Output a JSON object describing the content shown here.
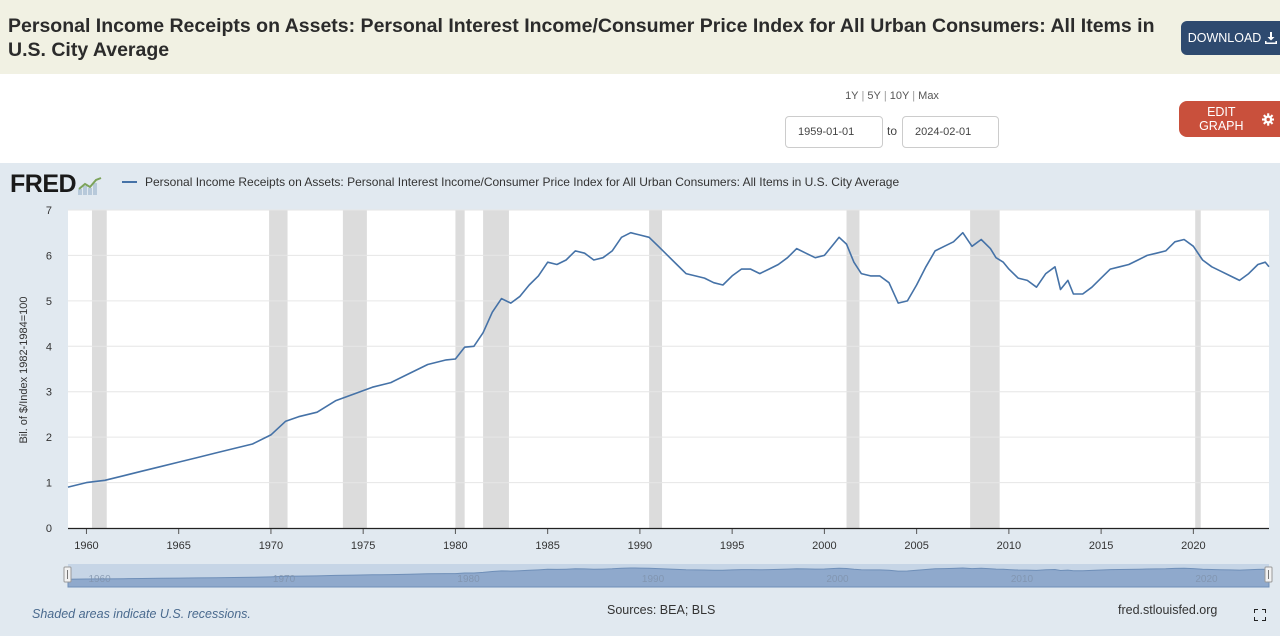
{
  "header": {
    "title": "Personal Income Receipts on Assets: Personal Interest Income/Consumer Price Index for All Urban Consumers: All Items in U.S. City Average",
    "download_label": "DOWNLOAD"
  },
  "controls": {
    "range_options": [
      "1Y",
      "5Y",
      "10Y",
      "Max"
    ],
    "start_date": "1959-01-01",
    "end_date": "2024-02-01",
    "to_label": "to",
    "edit_graph_label": "EDIT GRAPH"
  },
  "brand": {
    "logo_text": "FRED"
  },
  "footer": {
    "recession_note": "Shaded areas indicate U.S. recessions.",
    "sources": "Sources: BEA; BLS",
    "site": "fred.stlouisfed.org"
  },
  "colors": {
    "line": "#4572a7",
    "recession": "#dcdcdc",
    "panel": "#e1e9f0",
    "download": "#2e4a6f",
    "edit": "#c9503c"
  },
  "chart_data": {
    "type": "line",
    "title": "Personal Income Receipts on Assets: Personal Interest Income/Consumer Price Index for All Urban Consumers: All Items in U.S. City Average",
    "xlabel": "",
    "ylabel": "Bil. of $/Index 1982-1984=100",
    "xlim": [
      1959.0,
      2024.1
    ],
    "ylim": [
      0,
      7
    ],
    "yticks": [
      0,
      1,
      2,
      3,
      4,
      5,
      6,
      7
    ],
    "xticks": [
      1960,
      1965,
      1970,
      1975,
      1980,
      1985,
      1990,
      1995,
      2000,
      2005,
      2010,
      2015,
      2020
    ],
    "grid": true,
    "legend": "top-left",
    "recessions": [
      [
        1960.3,
        1961.1
      ],
      [
        1969.9,
        1970.9
      ],
      [
        1973.9,
        1975.2
      ],
      [
        1980.0,
        1980.5
      ],
      [
        1981.5,
        1982.9
      ],
      [
        1990.5,
        1991.2
      ],
      [
        2001.2,
        2001.9
      ],
      [
        2007.9,
        2009.5
      ],
      [
        2020.1,
        2020.4
      ]
    ],
    "series": [
      {
        "name": "Personal Income Receipts on Assets: Personal Interest Income/Consumer Price Index for All Urban Consumers: All Items in U.S. City Average",
        "x": [
          1959.0,
          1960.0,
          1961.0,
          1962.0,
          1963.0,
          1964.0,
          1965.0,
          1966.0,
          1967.0,
          1968.0,
          1969.0,
          1970.0,
          1970.8,
          1971.5,
          1972.5,
          1973.5,
          1974.5,
          1975.5,
          1976.5,
          1977.5,
          1978.5,
          1979.5,
          1980.0,
          1980.5,
          1981.0,
          1981.5,
          1982.0,
          1982.5,
          1983.0,
          1983.5,
          1984.0,
          1984.5,
          1985.0,
          1985.5,
          1986.0,
          1986.5,
          1987.0,
          1987.5,
          1988.0,
          1988.5,
          1989.0,
          1989.5,
          1990.0,
          1990.5,
          1991.0,
          1991.5,
          1992.0,
          1992.5,
          1993.0,
          1993.5,
          1994.0,
          1994.5,
          1995.0,
          1995.5,
          1996.0,
          1996.5,
          1997.0,
          1997.5,
          1998.0,
          1998.5,
          1999.0,
          1999.5,
          2000.0,
          2000.5,
          2000.8,
          2001.2,
          2001.6,
          2002.0,
          2002.5,
          2003.0,
          2003.5,
          2004.0,
          2004.5,
          2005.0,
          2005.5,
          2006.0,
          2006.5,
          2007.0,
          2007.5,
          2008.0,
          2008.5,
          2009.0,
          2009.3,
          2009.7,
          2010.0,
          2010.5,
          2011.0,
          2011.5,
          2012.0,
          2012.5,
          2012.8,
          2013.2,
          2013.5,
          2014.0,
          2014.5,
          2015.0,
          2015.5,
          2016.0,
          2016.5,
          2017.0,
          2017.5,
          2018.0,
          2018.5,
          2019.0,
          2019.5,
          2020.0,
          2020.5,
          2021.0,
          2021.5,
          2022.0,
          2022.5,
          2023.0,
          2023.5,
          2023.9,
          2024.1
        ],
        "values": [
          0.9,
          1.0,
          1.05,
          1.15,
          1.25,
          1.35,
          1.45,
          1.55,
          1.65,
          1.75,
          1.85,
          2.05,
          2.35,
          2.45,
          2.55,
          2.8,
          2.95,
          3.1,
          3.2,
          3.4,
          3.6,
          3.7,
          3.72,
          3.98,
          4.0,
          4.3,
          4.75,
          5.05,
          4.95,
          5.1,
          5.35,
          5.55,
          5.85,
          5.8,
          5.9,
          6.1,
          6.05,
          5.9,
          5.95,
          6.1,
          6.4,
          6.5,
          6.45,
          6.4,
          6.2,
          6.0,
          5.8,
          5.6,
          5.55,
          5.5,
          5.4,
          5.35,
          5.55,
          5.7,
          5.7,
          5.6,
          5.7,
          5.8,
          5.95,
          6.15,
          6.05,
          5.95,
          6.0,
          6.25,
          6.4,
          6.25,
          5.85,
          5.6,
          5.55,
          5.55,
          5.4,
          4.95,
          5.0,
          5.35,
          5.75,
          6.1,
          6.2,
          6.3,
          6.5,
          6.2,
          6.35,
          6.15,
          5.95,
          5.85,
          5.7,
          5.5,
          5.45,
          5.3,
          5.6,
          5.75,
          5.25,
          5.45,
          5.15,
          5.15,
          5.3,
          5.5,
          5.7,
          5.75,
          5.8,
          5.9,
          6.0,
          6.05,
          6.1,
          6.3,
          6.35,
          6.2,
          5.9,
          5.75,
          5.65,
          5.55,
          5.45,
          5.6,
          5.8,
          5.85,
          5.75
        ]
      }
    ],
    "navigator_labels": [
      "1960",
      "1970",
      "1980",
      "1990",
      "2000",
      "2010",
      "2020"
    ]
  }
}
